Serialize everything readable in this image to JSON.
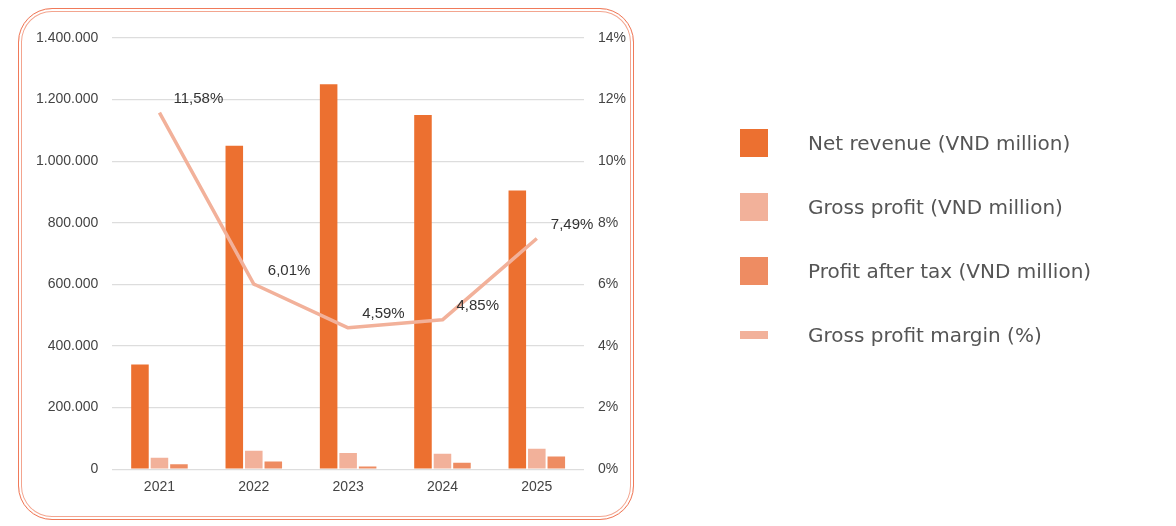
{
  "chart_data": {
    "type": "bar",
    "categories": [
      "2021",
      "2022",
      "2023",
      "2024",
      "2025"
    ],
    "series": [
      {
        "name": "Net revenue (VND million)",
        "color": "#ec7030",
        "values": [
          340000,
          1050000,
          1250000,
          1150000,
          905000
        ]
      },
      {
        "name": "Gross profit (VND million)",
        "color": "#f2b19a",
        "values": [
          37000,
          60000,
          53000,
          50000,
          66000
        ]
      },
      {
        "name": "Profit after tax (VND million)",
        "color": "#ee8c62",
        "values": [
          16000,
          25000,
          9000,
          21000,
          41000
        ]
      },
      {
        "name": "Gross profit margin (%)",
        "color": "#f2b19a",
        "type": "line",
        "axis": "y2",
        "marker": "none",
        "values": [
          11.58,
          6.01,
          4.59,
          4.85,
          7.49
        ],
        "value_labels": [
          "11,58%",
          "6,01%",
          "4,59%",
          "4,85%",
          "7,49%"
        ]
      }
    ],
    "ylim": [
      0,
      1400000
    ],
    "yticks": [
      {
        "value": 0,
        "label": "0"
      },
      {
        "value": 200000,
        "label": "200.000"
      },
      {
        "value": 400000,
        "label": "400.000"
      },
      {
        "value": 600000,
        "label": "600.000"
      },
      {
        "value": 800000,
        "label": "800.000"
      },
      {
        "value": 1000000,
        "label": "1.000.000"
      },
      {
        "value": 1200000,
        "label": "1.200.000"
      },
      {
        "value": 1400000,
        "label": "1.400.000"
      }
    ],
    "y2lim": [
      0,
      14
    ],
    "y2ticks": [
      {
        "value": 0,
        "label": "0%"
      },
      {
        "value": 2,
        "label": "2%"
      },
      {
        "value": 4,
        "label": "4%"
      },
      {
        "value": 6,
        "label": "6%"
      },
      {
        "value": 8,
        "label": "8%"
      },
      {
        "value": 10,
        "label": "10%"
      },
      {
        "value": 12,
        "label": "12%"
      },
      {
        "value": 14,
        "label": "14%"
      }
    ],
    "grid": "y",
    "legend": "right"
  }
}
